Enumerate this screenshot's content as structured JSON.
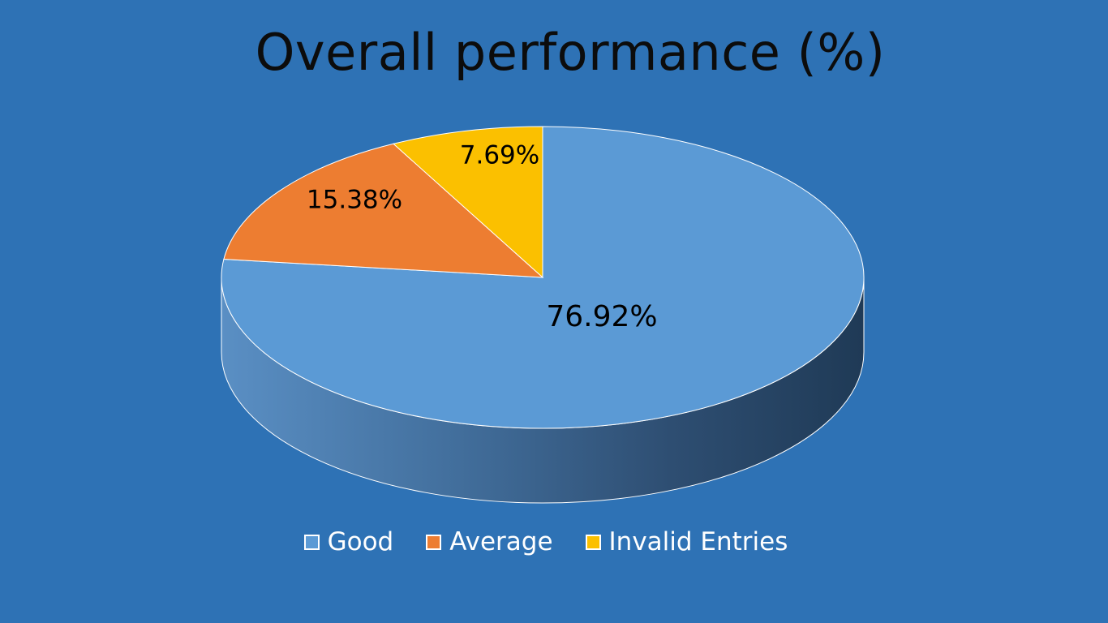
{
  "chart_data": {
    "type": "pie",
    "title": "Overall performance (%)",
    "labels": [
      "Good",
      "Average",
      "Invalid Entries"
    ],
    "values": [
      76.92,
      15.38,
      7.69
    ],
    "data_labels": [
      "76.92%",
      "15.38%",
      "7.69%"
    ],
    "colors": [
      "#5b9ad5",
      "#ed7d31",
      "#fbc000"
    ],
    "legend_position": "bottom",
    "style": "3d"
  },
  "background_color": "#2e72b5"
}
